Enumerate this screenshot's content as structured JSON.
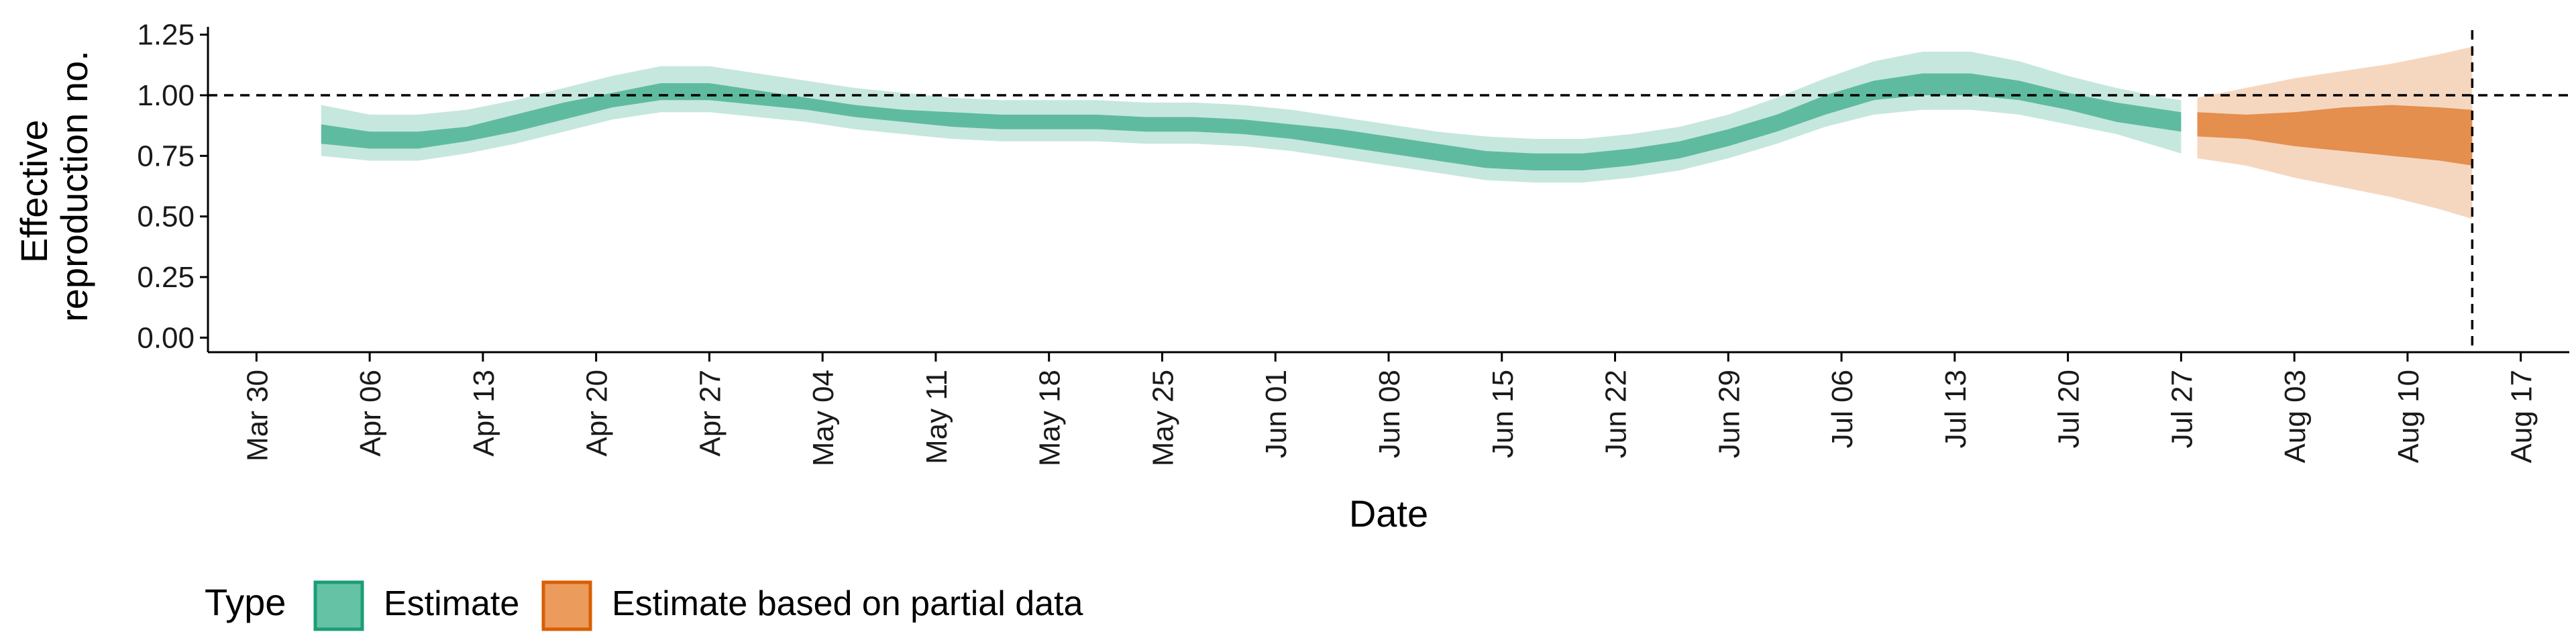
{
  "chart_data": {
    "type": "area",
    "xlabel": "Date",
    "ylabel_lines": [
      "Effective",
      "reproduction no."
    ],
    "x_ticks": [
      "2020-03-30",
      "2020-04-06",
      "2020-04-13",
      "2020-04-20",
      "2020-04-27",
      "2020-05-04",
      "2020-05-11",
      "2020-05-18",
      "2020-05-25",
      "2020-06-01",
      "2020-06-08",
      "2020-06-15",
      "2020-06-22",
      "2020-06-29",
      "2020-07-06",
      "2020-07-13",
      "2020-07-20",
      "2020-07-27",
      "2020-08-03",
      "2020-08-10",
      "2020-08-17"
    ],
    "x_tick_labels": [
      "Mar 30",
      "Apr 06",
      "Apr 13",
      "Apr 20",
      "Apr 27",
      "May 04",
      "May 11",
      "May 18",
      "May 25",
      "Jun 01",
      "Jun 08",
      "Jun 15",
      "Jun 22",
      "Jun 29",
      "Jul 06",
      "Jul 13",
      "Jul 20",
      "Jul 27",
      "Aug 03",
      "Aug 10",
      "Aug 17"
    ],
    "xlim": [
      "2020-03-27",
      "2020-08-20"
    ],
    "ylim": [
      -0.06,
      1.31
    ],
    "y_ticks": [
      0,
      0.25,
      0.5,
      0.75,
      1,
      1.25
    ],
    "y_tick_labels": [
      "0.00",
      "0.25",
      "0.50",
      "0.75",
      "1.00",
      "1.25"
    ],
    "hline": {
      "y": 1.0,
      "style": "dashed"
    },
    "vline": {
      "x": "2020-08-14",
      "style": "dashed"
    },
    "grid": false,
    "legend": {
      "title": "Type",
      "position": "bottom-left",
      "items": [
        {
          "label": "Estimate",
          "fill": "#66c2a5",
          "stroke": "#1b9e77"
        },
        {
          "label": "Estimate based on partial data",
          "fill": "#eb9b5c",
          "stroke": "#d95f02"
        }
      ]
    },
    "series": [
      {
        "name": "Estimate",
        "color": "#1b9e77",
        "points": [
          {
            "x": "2020-04-03",
            "lo90": 0.75,
            "hi90": 0.96,
            "lo50": 0.8,
            "hi50": 0.88
          },
          {
            "x": "2020-04-06",
            "lo90": 0.73,
            "hi90": 0.92,
            "lo50": 0.78,
            "hi50": 0.85
          },
          {
            "x": "2020-04-09",
            "lo90": 0.73,
            "hi90": 0.92,
            "lo50": 0.78,
            "hi50": 0.85
          },
          {
            "x": "2020-04-12",
            "lo90": 0.76,
            "hi90": 0.94,
            "lo50": 0.81,
            "hi50": 0.87
          },
          {
            "x": "2020-04-15",
            "lo90": 0.8,
            "hi90": 0.98,
            "lo50": 0.85,
            "hi50": 0.92
          },
          {
            "x": "2020-04-18",
            "lo90": 0.85,
            "hi90": 1.03,
            "lo50": 0.9,
            "hi50": 0.97
          },
          {
            "x": "2020-04-21",
            "lo90": 0.9,
            "hi90": 1.08,
            "lo50": 0.95,
            "hi50": 1.01
          },
          {
            "x": "2020-04-24",
            "lo90": 0.93,
            "hi90": 1.12,
            "lo50": 0.98,
            "hi50": 1.05
          },
          {
            "x": "2020-04-27",
            "lo90": 0.93,
            "hi90": 1.12,
            "lo50": 0.98,
            "hi50": 1.05
          },
          {
            "x": "2020-04-30",
            "lo90": 0.91,
            "hi90": 1.09,
            "lo50": 0.96,
            "hi50": 1.02
          },
          {
            "x": "2020-05-03",
            "lo90": 0.89,
            "hi90": 1.06,
            "lo50": 0.94,
            "hi50": 0.99
          },
          {
            "x": "2020-05-06",
            "lo90": 0.86,
            "hi90": 1.03,
            "lo50": 0.91,
            "hi50": 0.96
          },
          {
            "x": "2020-05-09",
            "lo90": 0.84,
            "hi90": 1.01,
            "lo50": 0.89,
            "hi50": 0.94
          },
          {
            "x": "2020-05-12",
            "lo90": 0.82,
            "hi90": 0.99,
            "lo50": 0.87,
            "hi50": 0.93
          },
          {
            "x": "2020-05-15",
            "lo90": 0.81,
            "hi90": 0.98,
            "lo50": 0.86,
            "hi50": 0.92
          },
          {
            "x": "2020-05-18",
            "lo90": 0.81,
            "hi90": 0.98,
            "lo50": 0.86,
            "hi50": 0.92
          },
          {
            "x": "2020-05-21",
            "lo90": 0.81,
            "hi90": 0.98,
            "lo50": 0.86,
            "hi50": 0.92
          },
          {
            "x": "2020-05-24",
            "lo90": 0.8,
            "hi90": 0.97,
            "lo50": 0.85,
            "hi50": 0.91
          },
          {
            "x": "2020-05-27",
            "lo90": 0.8,
            "hi90": 0.97,
            "lo50": 0.85,
            "hi50": 0.91
          },
          {
            "x": "2020-05-30",
            "lo90": 0.79,
            "hi90": 0.96,
            "lo50": 0.84,
            "hi50": 0.9
          },
          {
            "x": "2020-06-02",
            "lo90": 0.77,
            "hi90": 0.94,
            "lo50": 0.82,
            "hi50": 0.88
          },
          {
            "x": "2020-06-05",
            "lo90": 0.74,
            "hi90": 0.91,
            "lo50": 0.79,
            "hi50": 0.86
          },
          {
            "x": "2020-06-08",
            "lo90": 0.71,
            "hi90": 0.88,
            "lo50": 0.76,
            "hi50": 0.83
          },
          {
            "x": "2020-06-11",
            "lo90": 0.68,
            "hi90": 0.85,
            "lo50": 0.73,
            "hi50": 0.8
          },
          {
            "x": "2020-06-14",
            "lo90": 0.65,
            "hi90": 0.83,
            "lo50": 0.7,
            "hi50": 0.77
          },
          {
            "x": "2020-06-17",
            "lo90": 0.64,
            "hi90": 0.82,
            "lo50": 0.69,
            "hi50": 0.76
          },
          {
            "x": "2020-06-20",
            "lo90": 0.64,
            "hi90": 0.82,
            "lo50": 0.69,
            "hi50": 0.76
          },
          {
            "x": "2020-06-23",
            "lo90": 0.66,
            "hi90": 0.84,
            "lo50": 0.71,
            "hi50": 0.78
          },
          {
            "x": "2020-06-26",
            "lo90": 0.69,
            "hi90": 0.87,
            "lo50": 0.74,
            "hi50": 0.81
          },
          {
            "x": "2020-06-29",
            "lo90": 0.74,
            "hi90": 0.92,
            "lo50": 0.79,
            "hi50": 0.86
          },
          {
            "x": "2020-07-02",
            "lo90": 0.8,
            "hi90": 0.99,
            "lo50": 0.85,
            "hi50": 0.92
          },
          {
            "x": "2020-07-05",
            "lo90": 0.87,
            "hi90": 1.07,
            "lo50": 0.92,
            "hi50": 1.0
          },
          {
            "x": "2020-07-08",
            "lo90": 0.92,
            "hi90": 1.14,
            "lo50": 0.98,
            "hi50": 1.06
          },
          {
            "x": "2020-07-11",
            "lo90": 0.94,
            "hi90": 1.18,
            "lo50": 1.0,
            "hi50": 1.09
          },
          {
            "x": "2020-07-14",
            "lo90": 0.94,
            "hi90": 1.18,
            "lo50": 1.0,
            "hi50": 1.09
          },
          {
            "x": "2020-07-17",
            "lo90": 0.92,
            "hi90": 1.14,
            "lo50": 0.98,
            "hi50": 1.06
          },
          {
            "x": "2020-07-20",
            "lo90": 0.88,
            "hi90": 1.08,
            "lo50": 0.94,
            "hi50": 1.01
          },
          {
            "x": "2020-07-23",
            "lo90": 0.84,
            "hi90": 1.03,
            "lo50": 0.89,
            "hi50": 0.97
          },
          {
            "x": "2020-07-26",
            "lo90": 0.78,
            "hi90": 0.99,
            "lo50": 0.86,
            "hi50": 0.94
          },
          {
            "x": "2020-07-27",
            "lo90": 0.76,
            "hi90": 0.98,
            "lo50": 0.85,
            "hi50": 0.93
          }
        ]
      },
      {
        "name": "Estimate based on partial data",
        "color": "#d95f02",
        "points": [
          {
            "x": "2020-07-28",
            "lo90": 0.74,
            "hi90": 0.99,
            "lo50": 0.83,
            "hi50": 0.93
          },
          {
            "x": "2020-07-31",
            "lo90": 0.71,
            "hi90": 1.03,
            "lo50": 0.82,
            "hi50": 0.92
          },
          {
            "x": "2020-08-03",
            "lo90": 0.66,
            "hi90": 1.07,
            "lo50": 0.79,
            "hi50": 0.93
          },
          {
            "x": "2020-08-06",
            "lo90": 0.62,
            "hi90": 1.1,
            "lo50": 0.77,
            "hi50": 0.95
          },
          {
            "x": "2020-08-09",
            "lo90": 0.58,
            "hi90": 1.13,
            "lo50": 0.75,
            "hi50": 0.96
          },
          {
            "x": "2020-08-12",
            "lo90": 0.53,
            "hi90": 1.17,
            "lo50": 0.73,
            "hi50": 0.95
          },
          {
            "x": "2020-08-14",
            "lo90": 0.49,
            "hi90": 1.2,
            "lo50": 0.71,
            "hi50": 0.94
          }
        ]
      }
    ]
  }
}
